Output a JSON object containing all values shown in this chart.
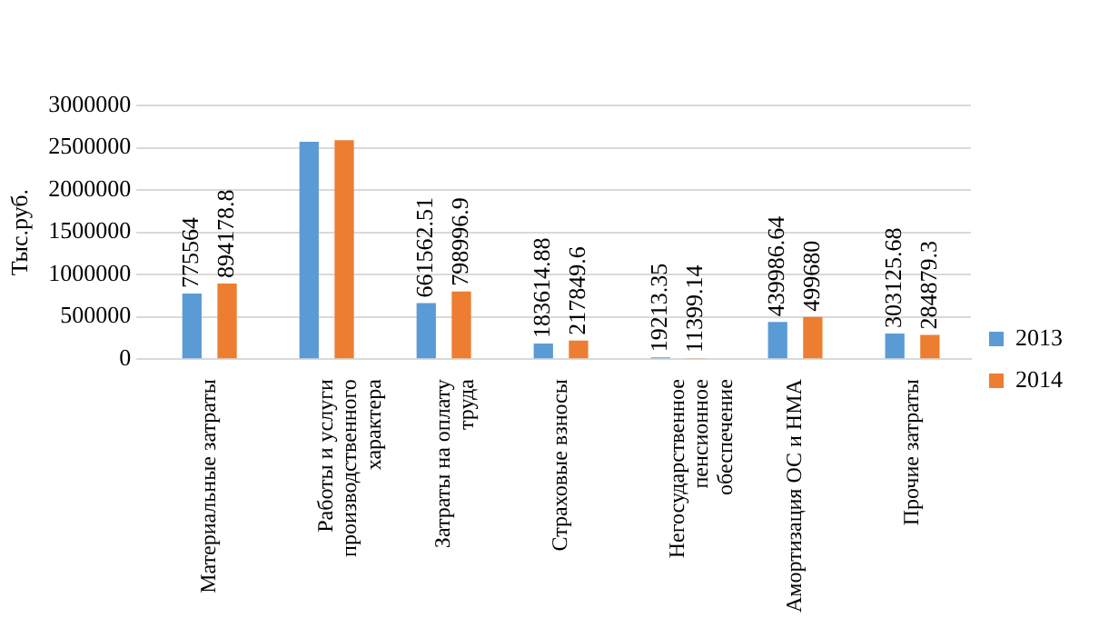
{
  "chart_data": {
    "type": "bar",
    "ylabel": "Тыс.руб.",
    "categories": [
      "Материальные затраты",
      "Работы и услуги производственного характера",
      "Затраты на оплату труда",
      "Страховые взносы",
      "Негосударственное пенсионное обеспечение",
      "Амортизация ОС и НМА",
      "Прочие затраты"
    ],
    "series": [
      {
        "name": "2013",
        "color": "#5b9bd5",
        "values": [
          775564,
          2570000,
          661562.51,
          183614.88,
          19213.35,
          439986.64,
          303125.68
        ],
        "value_labels": [
          "775564",
          null,
          "661562.51",
          "183614.88",
          "19213.35",
          "439986.64",
          "303125.68"
        ]
      },
      {
        "name": "2014",
        "color": "#ed7d31",
        "values": [
          894178.8,
          2590000,
          798996.9,
          217849.6,
          11399.14,
          499680,
          284879.3
        ],
        "value_labels": [
          "894178.8",
          null,
          "798996.9",
          "217849.6",
          "11399.14",
          "499680",
          "284879.3"
        ]
      }
    ],
    "ylim": [
      0,
      3000000
    ],
    "yticks": [
      0,
      500000,
      1000000,
      1500000,
      2000000,
      2500000,
      3000000
    ],
    "grid": "y",
    "legend": "right"
  }
}
